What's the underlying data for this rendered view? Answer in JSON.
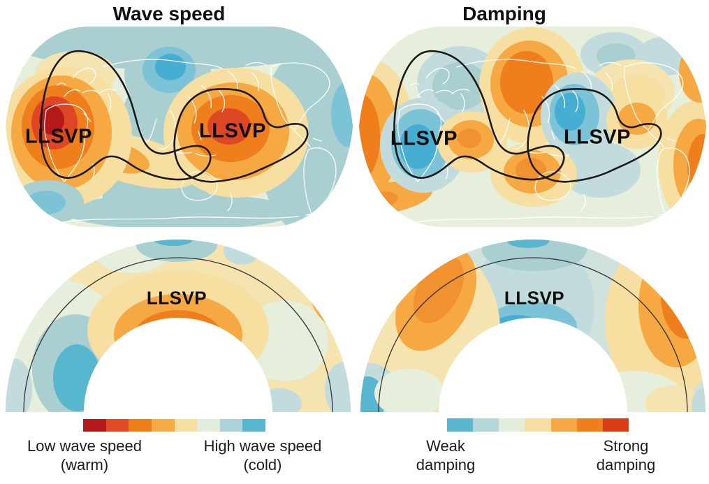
{
  "labels": {
    "llsvp": "LLSVP"
  },
  "panels": {
    "wave_speed_map": {
      "title": "Wave speed",
      "annotations": [
        "LLSVP",
        "LLSVP"
      ]
    },
    "damping_map": {
      "title": "Damping",
      "annotations": [
        "LLSVP",
        "LLSVP"
      ]
    },
    "wave_speed_section": {
      "annotation": "LLSVP"
    },
    "damping_section": {
      "annotation": "LLSVP"
    }
  },
  "legend": {
    "wave_speed": {
      "colors": [
        "#b5191c",
        "#e04a24",
        "#ef7f1a",
        "#f7ab45",
        "#f6dfa0",
        "#e3eeda",
        "#abd2d9",
        "#58b7cf"
      ],
      "left_label": [
        "Low wave speed",
        "(warm)"
      ],
      "right_label": [
        "High wave speed",
        "(cold)"
      ]
    },
    "damping": {
      "colors": [
        "#58b7cf",
        "#b3d7d8",
        "#e3eeda",
        "#f6dfa0",
        "#f7a843",
        "#ef7f1a",
        "#dd3d16"
      ],
      "left_label": [
        "Weak",
        "damping"
      ],
      "right_label": [
        "Strong",
        "damping"
      ]
    }
  },
  "palette": {
    "darkred": "#b5191c",
    "red": "#dd4723",
    "redorange": "#dd3d16",
    "orange": "#ee7f1c",
    "orangemid": "#f0922f",
    "lightorange": "#f6a943",
    "paleyellow": "#f6dfa0",
    "cream": "#f5e3b0",
    "palegreen": "#e6efdb",
    "tealfaint": "#cfe2de",
    "tealpale": "#c2dcdd",
    "teal": "#a9cfd1",
    "bluelight": "#7cc3d8",
    "blue": "#58b7cf",
    "bluedeep": "#45aed2",
    "coast": "#ffffff",
    "contour": "#1a1a1a",
    "sectionline": "#333333",
    "text": "#111111"
  },
  "chart_data": [
    {
      "type": "heatmap",
      "title": "Wave speed",
      "view": "global map (oval Robinson-style projection, Pacific/Africa-centered) with white coastlines",
      "legend": {
        "low_end": "Low wave speed (warm)",
        "high_end": "High wave speed (cold)",
        "colors_low_to_high": [
          "#b5191c",
          "#e04a24",
          "#ef7f1a",
          "#f7ab45",
          "#f6dfa0",
          "#e3eeda",
          "#abd2d9",
          "#58b7cf"
        ]
      },
      "annotations": [
        "LLSVP black outline over Africa",
        "LLSVP black outline over central Pacific"
      ],
      "regions": [
        {
          "name": "Africa (African LLSVP)",
          "value": "lowest wave speed (dark red core)"
        },
        {
          "name": "central Pacific (Pacific LLSVP)",
          "value": "very low wave speed (red core)"
        },
        {
          "name": "northeast Asia",
          "value": "highest wave speed (blue)"
        },
        {
          "name": "Americas / eastern Pacific band",
          "value": "high wave speed (teal)"
        },
        {
          "name": "south Atlantic",
          "value": "high wave speed (blue)"
        },
        {
          "name": "Indian Ocean band and Arctic band",
          "value": "high wave speed (teal)"
        }
      ]
    },
    {
      "type": "heatmap",
      "title": "Damping",
      "view": "global map (same projection) with white coastlines",
      "legend": {
        "low_end": "Weak damping",
        "high_end": "Strong damping",
        "colors_low_to_high": [
          "#58b7cf",
          "#b3d7d8",
          "#e3eeda",
          "#f6dfa0",
          "#f7a843",
          "#ef7f1a",
          "#dd3d16"
        ]
      },
      "annotations": [
        "LLSVP black outline over Africa",
        "LLSVP black outline over central Pacific"
      ],
      "regions": [
        {
          "name": "inside African LLSVP outline",
          "value": "weak damping (blue)"
        },
        {
          "name": "western interior of Pacific LLSVP outline",
          "value": "weak damping (blue)"
        },
        {
          "name": "east Asia",
          "value": "strong damping (orange)"
        },
        {
          "name": "Atlantic at left map edge",
          "value": "strong damping (orange)"
        },
        {
          "name": "South America / right map edge",
          "value": "strong damping (orange)"
        },
        {
          "name": "Australia region and Indian Ocean patch",
          "value": "moderately strong damping (orange)"
        }
      ]
    },
    {
      "type": "heatmap",
      "title": "Wave speed mantle cross-section",
      "view": "half-annulus from surface (outer arc) to core-mantle boundary (inner arc); thin black arc near surface marks upper/lower mantle boundary",
      "annotations": [
        "LLSVP"
      ],
      "regions": [
        {
          "name": "base of mantle at top of inner boundary (LLSVP)",
          "value": "lowest wave speed (orange to dark red core)"
        },
        {
          "name": "lower-left mid mantle",
          "value": "high wave speed (blue)"
        },
        {
          "name": "upper-right outer edge",
          "value": "low wave speed (orange)"
        },
        {
          "name": "top cap near surface",
          "value": "high wave speed (teal)"
        },
        {
          "name": "background",
          "value": "neutral (cream / pale green)"
        }
      ]
    },
    {
      "type": "heatmap",
      "title": "Damping mantle cross-section",
      "view": "half-annulus from surface to core-mantle boundary; thin black arc near surface",
      "annotations": [
        "LLSVP"
      ],
      "regions": [
        {
          "name": "base of mantle at top of inner boundary (LLSVP)",
          "value": "weak damping (blue)"
        },
        {
          "name": "upper-right outer mantle",
          "value": "strongest damping (red-orange)"
        },
        {
          "name": "upper-left outer mantle",
          "value": "strong damping (orange)"
        },
        {
          "name": "background",
          "value": "neutral (pale teal / cream)"
        }
      ]
    }
  ]
}
